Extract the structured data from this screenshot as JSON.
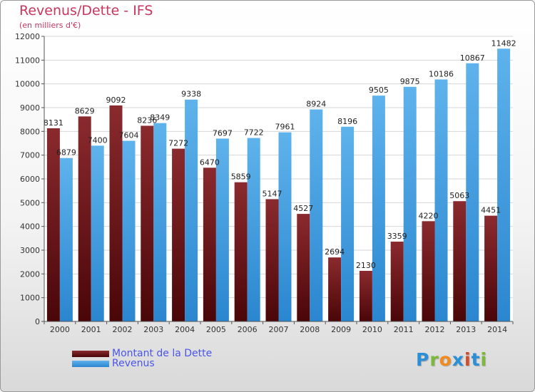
{
  "title": "Revenus/Dette - IFS",
  "subtitle": "(en milliers d'€)",
  "legend": {
    "debt_label": "Montant de la Dette",
    "revenue_label": "Revenus"
  },
  "logo": {
    "letters": [
      "P",
      "r",
      "o",
      "x",
      "i",
      "t",
      "i"
    ],
    "colors": [
      "#2a8fd6",
      "#7cb83a",
      "#f28a1c",
      "#2a8fd6",
      "#d64a2a",
      "#2a8fd6",
      "#7cb83a"
    ]
  },
  "colors": {
    "debt": "#7a1a1e",
    "debt_dark": "#4a0608",
    "revenue": "#5aaee8",
    "revenue_dark": "#2a86cf",
    "title": "#c8365e",
    "legend_text": "#4b55e8"
  },
  "chart_data": {
    "type": "bar",
    "title": "Revenus/Dette - IFS",
    "subtitle": "(en milliers d'€)",
    "categories": [
      "2000",
      "2001",
      "2002",
      "2003",
      "2004",
      "2005",
      "2006",
      "2007",
      "2008",
      "2009",
      "2010",
      "2011",
      "2012",
      "2013",
      "2014"
    ],
    "series": [
      {
        "name": "Montant de la Dette",
        "values": [
          8131,
          8629,
          9092,
          8236,
          7272,
          6470,
          5859,
          5147,
          4527,
          2694,
          2130,
          3359,
          4220,
          5063,
          4451
        ],
        "labels": [
          "8131",
          "8629",
          "9092",
          "8236",
          "7272",
          "6470",
          "5859",
          "5147",
          "4527",
          "2694",
          "2130",
          "3359",
          "4220",
          "5063",
          "4451"
        ]
      },
      {
        "name": "Revenus",
        "values": [
          6879,
          7400,
          7604,
          8349,
          9338,
          7697,
          7722,
          7961,
          8924,
          8196,
          9505,
          9875,
          10186,
          10867,
          11482
        ],
        "labels": [
          "6879",
          "7400",
          "7604",
          "8349",
          "9338",
          "7697",
          "7722",
          "7961",
          "8924",
          "8196",
          "9505",
          "9875",
          "10186",
          "10867",
          "11482"
        ]
      }
    ],
    "yticks": [
      "0",
      "1000",
      "2000",
      "3000",
      "4000",
      "5000",
      "6000",
      "7000",
      "8000",
      "9000",
      "10000",
      "11000",
      "12000"
    ],
    "ylim": [
      0,
      12000
    ],
    "grid": true,
    "legend_position": "bottom-left"
  }
}
